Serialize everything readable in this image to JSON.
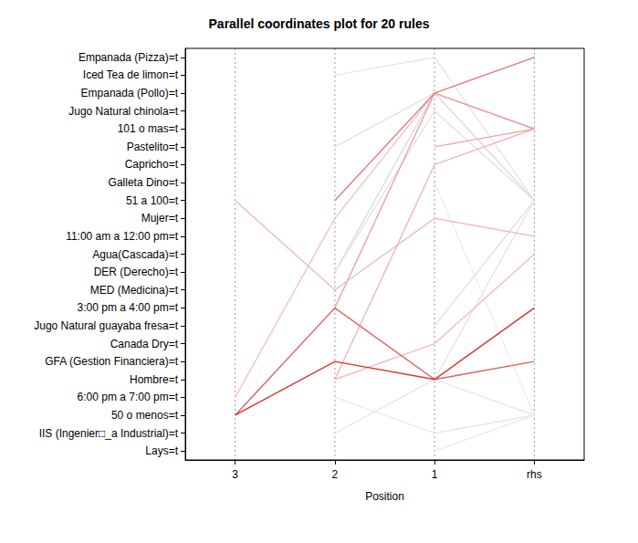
{
  "chart_data": {
    "type": "parallel_coordinates",
    "title": "Parallel coordinates plot for 20 rules",
    "x_label": "Position",
    "positions": [
      "3",
      "2",
      "1",
      "rhs"
    ],
    "items": [
      "Empanada (Pizza)=t",
      "Iced Tea de limon=t",
      "Empanada (Pollo)=t",
      "Jugo Natural chinola=t",
      "101 o mas=t",
      "Pastelito=t",
      "Capricho=t",
      "Galleta Dino=t",
      "51 a 100=t",
      "Mujer=t",
      "11:00 am a 12:00 pm=t",
      "Agua(Cascada)=t",
      "DER (Derecho)=t",
      "MED (Medicina)=t",
      "3:00 pm a 4:00 pm=t",
      "Jugo Natural guayaba fresa=t",
      "Canada Dry=t",
      "GFA (Gestion Financiera)=t",
      "Hombre=t",
      "6:00 pm a 7:00 pm=t",
      "50 o menos=t",
      "IIS (Ingenier□_a Industrial)=t",
      "Lays=t"
    ],
    "series": [
      {
        "values": [
          null,
          "Iced Tea de limon=t",
          "Empanada (Pizza)=t",
          "51 a 100=t"
        ],
        "color": "#e6e6e6"
      },
      {
        "values": [
          null,
          "DER (Derecho)=t",
          "Empanada (Pollo)=t",
          "51 a 100=t"
        ],
        "color": "#dcdcdc"
      },
      {
        "values": [
          null,
          "DER (Derecho)=t",
          "Jugo Natural chinola=t",
          "51 a 100=t"
        ],
        "color": "#e3e3e3"
      },
      {
        "values": [
          null,
          "Pastelito=t",
          "Empanada (Pollo)=t",
          "51 a 100=t"
        ],
        "color": "#e2e2e2"
      },
      {
        "values": [
          null,
          null,
          "Jugo Natural guayaba fresa=t",
          "51 a 100=t"
        ],
        "color": "#e0e0e0"
      },
      {
        "values": [
          null,
          null,
          "IIS (Ingenier□_a Industrial)=t",
          "50 o menos=t"
        ],
        "color": "#e4e4e4"
      },
      {
        "values": [
          null,
          "6:00 pm a 7:00 pm=t",
          "IIS (Ingenier□_a Industrial)=t",
          "50 o menos=t"
        ],
        "color": "#eaeaea"
      },
      {
        "values": [
          null,
          "IIS (Ingenier□_a Industrial)=t",
          "Hombre=t",
          "50 o menos=t"
        ],
        "color": "#e8e8e8"
      },
      {
        "values": [
          null,
          null,
          "Lays=t",
          "50 o menos=t"
        ],
        "color": "#ececec"
      },
      {
        "values": [
          null,
          null,
          "Galleta Dino=t",
          "50 o menos=t"
        ],
        "color": "#eeeeee"
      },
      {
        "values": [
          null,
          null,
          "Hombre=t",
          "51 a 100=t"
        ],
        "color": "#e5e5e5"
      },
      {
        "values": [
          null,
          null,
          "Pastelito=t",
          "101 o mas=t"
        ],
        "color": "#f0a8a8"
      },
      {
        "values": [
          null,
          "Hombre=t",
          "Capricho=t",
          "101 o mas=t"
        ],
        "color": "#f2b5b3"
      },
      {
        "values": [
          "6:00 pm a 7:00 pm=t",
          "Mujer=t",
          "Empanada (Pollo)=t",
          "101 o mas=t"
        ],
        "color": "#f4c2c0"
      },
      {
        "values": [
          null,
          "3:00 pm a 4:00 pm=t",
          "Empanada (Pollo)=t",
          "101 o mas=t"
        ],
        "color": "#eea0a0"
      },
      {
        "values": [
          null,
          "Hombre=t",
          "Canada Dry=t",
          "Agua(Cascada)=t"
        ],
        "color": "#f3bcbb"
      },
      {
        "values": [
          "51 a 100=t",
          "MED (Medicina)=t",
          "Mujer=t",
          "11:00 am a 12:00 pm=t"
        ],
        "color": "#f0b8b8"
      },
      {
        "values": [
          null,
          "51 a 100=t",
          "Empanada (Pollo)=t",
          "Empanada (Pizza)=t"
        ],
        "color": "#e57b78"
      },
      {
        "values": [
          "50 o menos=t",
          "3:00 pm a 4:00 pm=t",
          "Hombre=t",
          "GFA (Gestion Financiera)=t"
        ],
        "color": "#e35f5a"
      },
      {
        "values": [
          "50 o menos=t",
          "GFA (Gestion Financiera)=t",
          "Hombre=t",
          "3:00 pm a 4:00 pm=t"
        ],
        "color": "#d8302a"
      }
    ]
  }
}
